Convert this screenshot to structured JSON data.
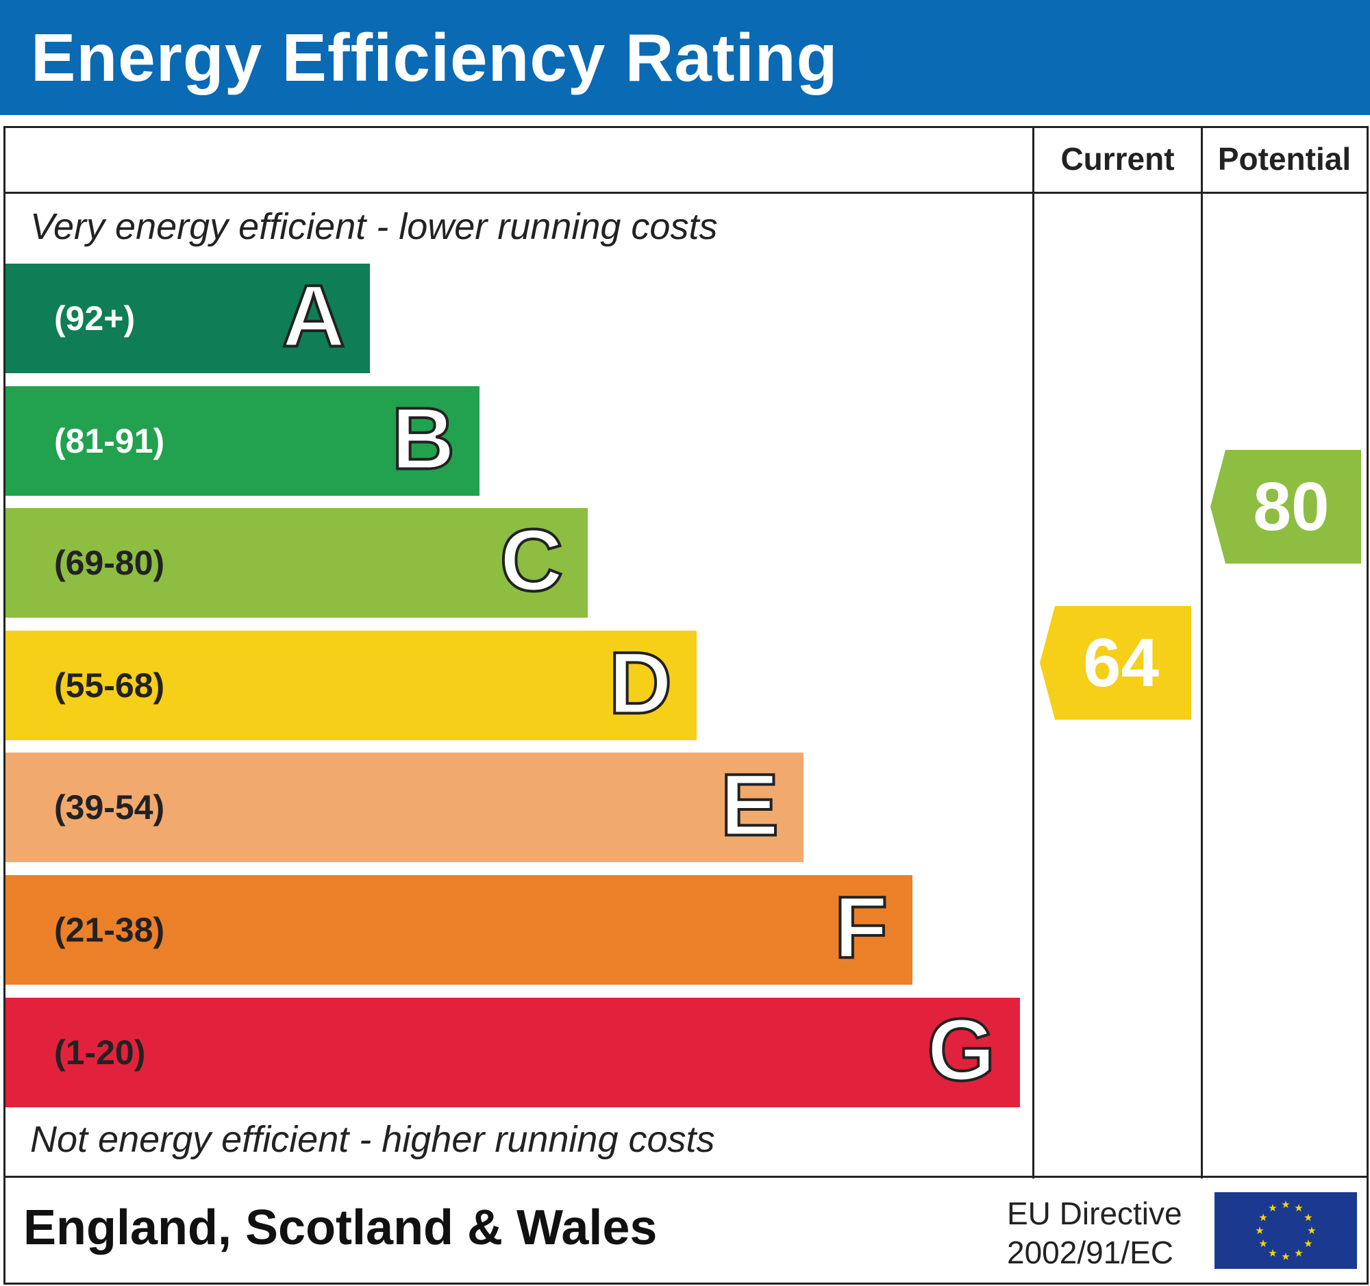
{
  "title": "Energy Efficiency Rating",
  "columns": {
    "current": "Current",
    "potential": "Potential"
  },
  "top_note": "Very energy efficient - lower running costs",
  "bottom_note": "Not energy efficient - higher running costs",
  "bands": [
    {
      "letter": "A",
      "range": "(92+)",
      "color": "#0f7d55",
      "text_color": "#ffffff"
    },
    {
      "letter": "B",
      "range": "(81-91)",
      "color": "#22a14e",
      "text_color": "#ffffff"
    },
    {
      "letter": "C",
      "range": "(69-80)",
      "color": "#8dbd41",
      "text_color": "#222222"
    },
    {
      "letter": "D",
      "range": "(55-68)",
      "color": "#f5cf18",
      "text_color": "#222222"
    },
    {
      "letter": "E",
      "range": "(39-54)",
      "color": "#f2a96e",
      "text_color": "#222222"
    },
    {
      "letter": "F",
      "range": "(21-38)",
      "color": "#ec8029",
      "text_color": "#222222"
    },
    {
      "letter": "G",
      "range": "(1-20)",
      "color": "#e2213c",
      "text_color": "#222222"
    }
  ],
  "current": {
    "value": "64",
    "band": "D",
    "color": "#f5cf18"
  },
  "potential": {
    "value": "80",
    "band": "C",
    "color": "#8dbd41"
  },
  "footer": {
    "region": "England, Scotland & Wales",
    "directive_line1": "EU Directive",
    "directive_line2": "2002/91/EC",
    "flag_icon": "eu-flag-icon"
  }
}
